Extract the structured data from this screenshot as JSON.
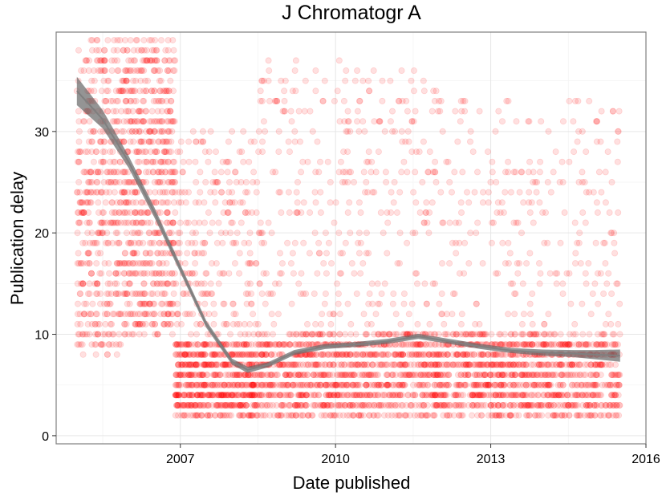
{
  "chart_data": {
    "type": "scatter",
    "title": "J Chromatogr A",
    "xlabel": "Date published",
    "ylabel": "Publication delay",
    "x_ticks": [
      "2007",
      "2010",
      "2013",
      "2016"
    ],
    "y_ticks": [
      "0",
      "10",
      "20",
      "30"
    ],
    "xlim": [
      2004.6,
      2016.0
    ],
    "ylim": [
      -0.8,
      39.8
    ],
    "grid": true,
    "legend": "none",
    "point_color": "#ff0000",
    "point_alpha": 0.12,
    "smooth_color": "#7f7f7f",
    "point_clusters": [
      {
        "x": [
          2005.0,
          2005.9
        ],
        "y": [
          8,
          39
        ],
        "n": 450
      },
      {
        "x": [
          2005.9,
          2006.9
        ],
        "y": [
          10,
          39
        ],
        "n": 650
      },
      {
        "x": [
          2006.9,
          2008.5
        ],
        "y": [
          2,
          9
        ],
        "n": 650
      },
      {
        "x": [
          2006.9,
          2008.5
        ],
        "y": [
          9,
          30
        ],
        "n": 250
      },
      {
        "x": [
          2008.5,
          2012.0
        ],
        "y": [
          2,
          10
        ],
        "n": 1100
      },
      {
        "x": [
          2008.5,
          2012.0
        ],
        "y": [
          10,
          37
        ],
        "n": 350
      },
      {
        "x": [
          2012.0,
          2015.5
        ],
        "y": [
          2,
          10
        ],
        "n": 1100
      },
      {
        "x": [
          2012.0,
          2015.5
        ],
        "y": [
          10,
          33
        ],
        "n": 260
      }
    ],
    "smooth": {
      "x": [
        2005.0,
        2005.5,
        2006.0,
        2006.5,
        2007.0,
        2007.5,
        2008.0,
        2008.3,
        2008.7,
        2009.2,
        2009.8,
        2010.4,
        2011.0,
        2011.6,
        2012.2,
        2012.8,
        2013.4,
        2014.0,
        2014.6,
        2015.0,
        2015.5
      ],
      "y": [
        34.0,
        31.2,
        27.0,
        22.0,
        16.5,
        11.0,
        7.3,
        6.5,
        7.0,
        8.2,
        8.8,
        9.0,
        9.3,
        9.8,
        9.3,
        8.8,
        8.4,
        8.2,
        8.1,
        8.0,
        7.9
      ],
      "band": [
        1.4,
        0.9,
        0.6,
        0.5,
        0.4,
        0.35,
        0.3,
        0.3,
        0.25,
        0.25,
        0.25,
        0.25,
        0.25,
        0.25,
        0.25,
        0.25,
        0.25,
        0.3,
        0.35,
        0.45,
        0.6
      ]
    }
  }
}
